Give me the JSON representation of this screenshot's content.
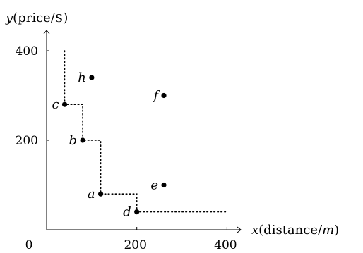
{
  "chart_data": {
    "type": "scatter",
    "x_axis": {
      "var": "x",
      "label_rest": "(distance/",
      "unit": "m",
      "label_close": ")",
      "ticks": [
        0,
        200,
        400
      ],
      "range": [
        0,
        400
      ]
    },
    "y_axis": {
      "var": "y",
      "label_rest": "(price/$)",
      "ticks": [
        200,
        400
      ],
      "range": [
        0,
        400
      ]
    },
    "points": [
      {
        "label": "a",
        "x": 120,
        "y": 80
      },
      {
        "label": "b",
        "x": 80,
        "y": 200
      },
      {
        "label": "c",
        "x": 40,
        "y": 280
      },
      {
        "label": "d",
        "x": 200,
        "y": 40
      },
      {
        "label": "e",
        "x": 260,
        "y": 100
      },
      {
        "label": "f",
        "x": 260,
        "y": 300
      },
      {
        "label": "h",
        "x": 100,
        "y": 340
      }
    ],
    "staircase": [
      [
        40,
        400
      ],
      [
        40,
        280
      ],
      [
        80,
        280
      ],
      [
        80,
        200
      ],
      [
        120,
        200
      ],
      [
        120,
        80
      ],
      [
        200,
        80
      ],
      [
        200,
        40
      ],
      [
        400,
        40
      ]
    ],
    "grid": false,
    "legend": "none"
  }
}
